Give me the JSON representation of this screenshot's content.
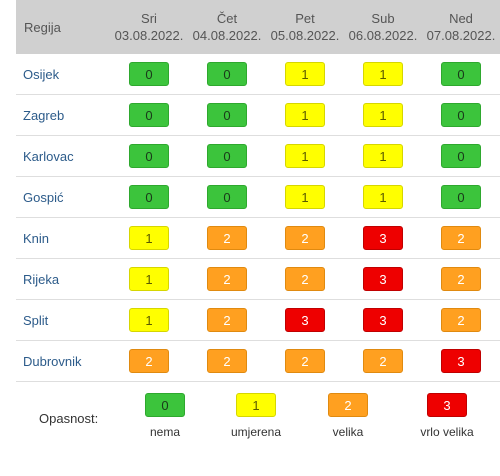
{
  "header": {
    "region_label": "Regija",
    "days": [
      {
        "day": "Sri",
        "date": "03.08.2022."
      },
      {
        "day": "Čet",
        "date": "04.08.2022."
      },
      {
        "day": "Pet",
        "date": "05.08.2022."
      },
      {
        "day": "Sub",
        "date": "06.08.2022."
      },
      {
        "day": "Ned",
        "date": "07.08.2022."
      }
    ]
  },
  "rows": [
    {
      "city": "Osijek",
      "values": [
        "0",
        "0",
        "1",
        "1",
        "0"
      ]
    },
    {
      "city": "Zagreb",
      "values": [
        "0",
        "0",
        "1",
        "1",
        "0"
      ]
    },
    {
      "city": "Karlovac",
      "values": [
        "0",
        "0",
        "1",
        "1",
        "0"
      ]
    },
    {
      "city": "Gospić",
      "values": [
        "0",
        "0",
        "1",
        "1",
        "0"
      ]
    },
    {
      "city": "Knin",
      "values": [
        "1",
        "2",
        "2",
        "3",
        "2"
      ]
    },
    {
      "city": "Rijeka",
      "values": [
        "1",
        "2",
        "2",
        "3",
        "2"
      ]
    },
    {
      "city": "Split",
      "values": [
        "1",
        "2",
        "3",
        "3",
        "2"
      ]
    },
    {
      "city": "Dubrovnik",
      "values": [
        "2",
        "2",
        "2",
        "2",
        "3"
      ]
    }
  ],
  "levels": {
    "0": {
      "bg": "#3cc43c",
      "fg": "#1a3a1a",
      "border": "#2ea82e"
    },
    "1": {
      "bg": "#ffff00",
      "fg": "#5a5a00",
      "border": "#d6d600"
    },
    "2": {
      "bg": "#ffa020",
      "fg": "#ffffff",
      "border": "#e08a10"
    },
    "3": {
      "bg": "#ee0000",
      "fg": "#ffffff",
      "border": "#c00000"
    }
  },
  "legend": {
    "label": "Opasnost:",
    "items": [
      {
        "value": "0",
        "text": "nema"
      },
      {
        "value": "1",
        "text": "umjerena"
      },
      {
        "value": "2",
        "text": "velika"
      },
      {
        "value": "3",
        "text": "vrlo velika"
      }
    ]
  }
}
